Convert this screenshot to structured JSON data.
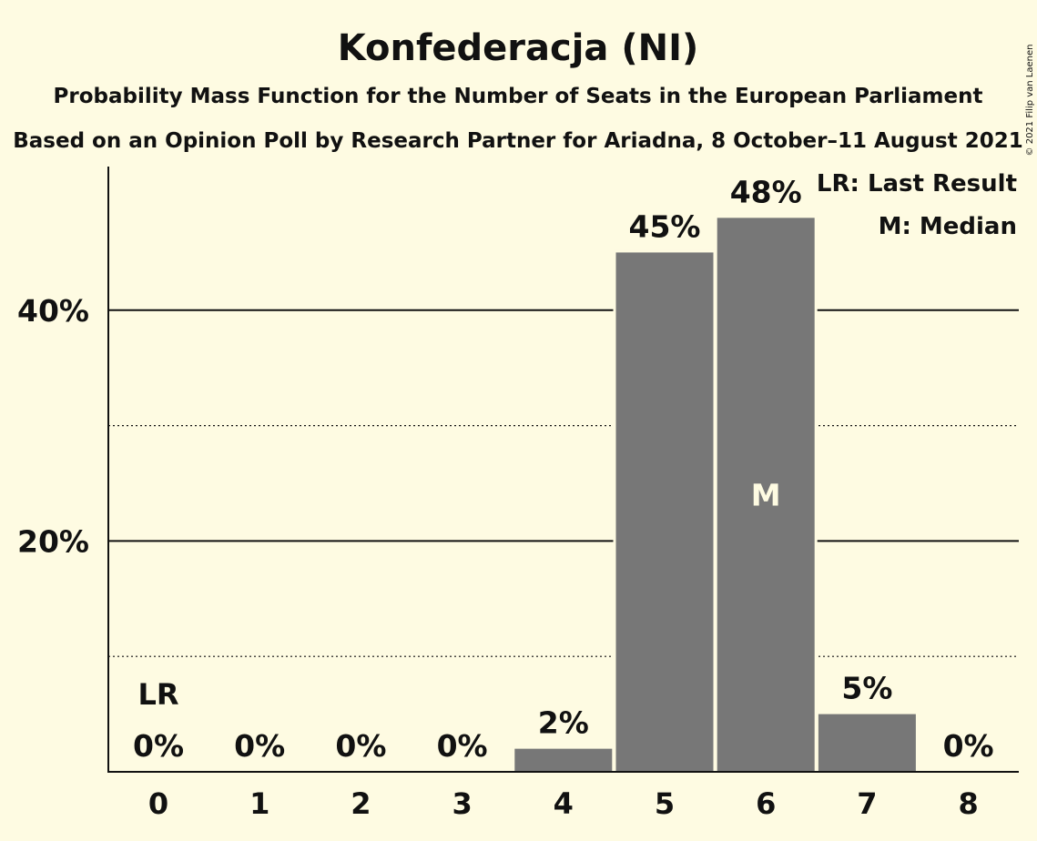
{
  "chart_data": {
    "type": "bar",
    "title": "Konfederacja (NI)",
    "subtitle": "Probability Mass Function for the Number of Seats in the European Parliament",
    "subtitle2": "Based on an Opinion Poll by Research Partner for Ariadna, 8 October–11 August 2021",
    "copyright": "© 2021 Filip van Laenen",
    "categories": [
      "0",
      "1",
      "2",
      "3",
      "4",
      "5",
      "6",
      "7",
      "8"
    ],
    "values": [
      0,
      0,
      0,
      0,
      2,
      45,
      48,
      5,
      0
    ],
    "value_labels": [
      "0%",
      "0%",
      "0%",
      "0%",
      "2%",
      "45%",
      "48%",
      "5%",
      "0%"
    ],
    "ylim": [
      0,
      52
    ],
    "yticks": [
      {
        "value": 20,
        "label": "20%"
      },
      {
        "value": 40,
        "label": "40%"
      }
    ],
    "minor_gridlines": [
      10,
      30
    ],
    "last_result": {
      "category": "0",
      "label": "LR"
    },
    "median": {
      "category": "6",
      "label": "M"
    },
    "legend": {
      "position": "top-right",
      "entries": [
        "LR: Last Result",
        "M: Median"
      ]
    },
    "colors": {
      "background": "#fefbe2",
      "bar": "#777777",
      "text": "#111111"
    }
  }
}
